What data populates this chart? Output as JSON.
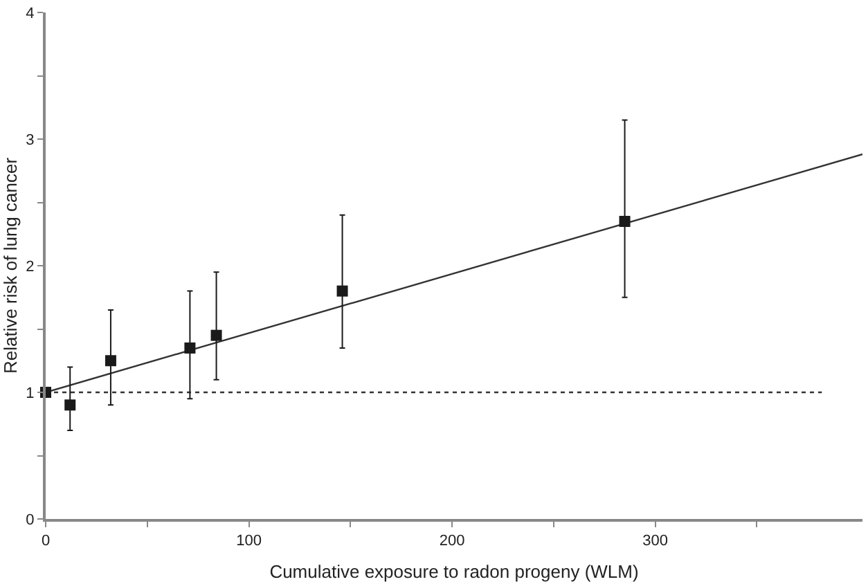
{
  "chart_data": {
    "type": "scatter",
    "xlabel": "Cumulative exposure to radon progeny (WLM)",
    "ylabel": "Relative risk of lung cancer",
    "xlim": [
      0,
      402
    ],
    "ylim": [
      0,
      4
    ],
    "xticks": [
      0,
      {
        "value": 50,
        "label": null
      },
      100,
      {
        "value": 150,
        "label": null
      },
      200,
      {
        "value": 250,
        "label": null
      },
      300,
      {
        "value": 350,
        "label": null
      }
    ],
    "yticks": [
      0,
      {
        "value": 0.5,
        "label": null
      },
      1,
      {
        "value": 1.5,
        "label": null
      },
      2,
      {
        "value": 2.5,
        "label": null
      },
      3,
      {
        "value": 3.5,
        "label": null
      },
      4
    ],
    "series": [
      {
        "type": "line",
        "color": "#333333",
        "line_style": "dotted",
        "marker": "none",
        "x": [
          0,
          382
        ],
        "values": [
          1.0,
          1.0
        ]
      },
      {
        "type": "line",
        "color": "#333333",
        "line_style": "solid",
        "marker": "none",
        "x": [
          0,
          402
        ],
        "values": [
          1.0,
          2.88
        ]
      },
      {
        "color": "#1a1a1a",
        "marker": "square",
        "x": [
          0,
          12,
          32,
          71,
          84,
          146,
          285
        ],
        "values": [
          1.0,
          0.9,
          1.25,
          1.35,
          1.45,
          1.8,
          2.35
        ],
        "errors": [
          null,
          [
            0.7,
            1.2
          ],
          [
            0.9,
            1.65
          ],
          [
            0.95,
            1.8
          ],
          [
            1.1,
            1.95
          ],
          [
            1.35,
            2.4
          ],
          [
            1.75,
            3.15
          ]
        ]
      }
    ]
  }
}
